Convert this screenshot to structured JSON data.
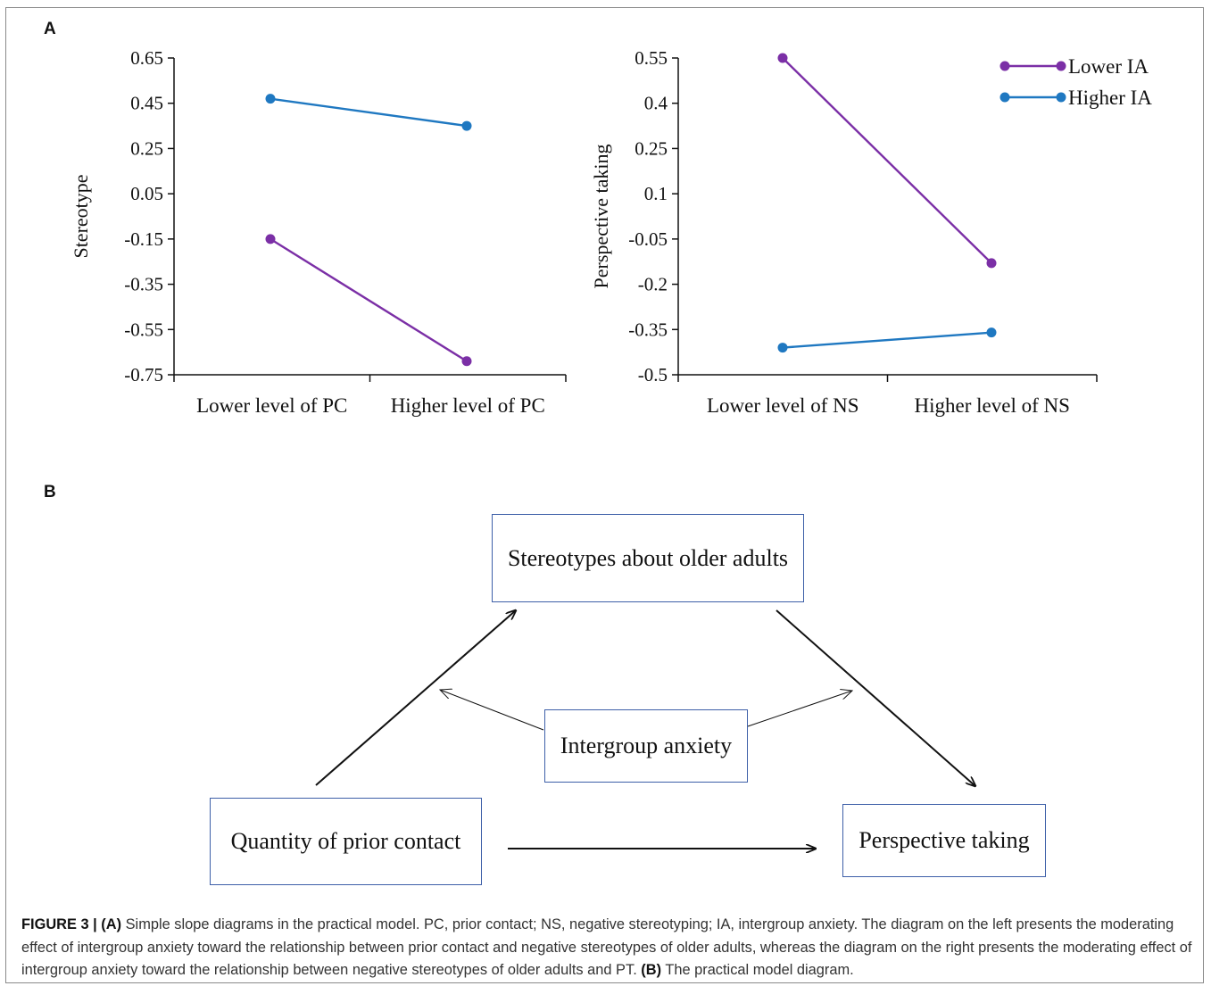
{
  "panel_a_label": "A",
  "panel_b_label": "B",
  "chart_data": [
    {
      "type": "line",
      "xlabel": "",
      "ylabel": "Stereotype",
      "categories": [
        "Lower level of PC",
        "Higher level of PC"
      ],
      "y_ticks": [
        "0.65",
        "0.45",
        "0.25",
        "0.05",
        "-0.15",
        "-0.35",
        "-0.55",
        "-0.75"
      ],
      "ylim": [
        -0.75,
        0.65
      ],
      "series": [
        {
          "name": "Lower IA",
          "values": [
            -0.15,
            -0.69
          ],
          "color": "#7b2fa6"
        },
        {
          "name": "Higher IA",
          "values": [
            0.47,
            0.35
          ],
          "color": "#1f78c1"
        }
      ],
      "legend": "none",
      "grid": false
    },
    {
      "type": "line",
      "xlabel": "",
      "ylabel": "Perspective taking",
      "categories": [
        "Lower level of NS",
        "Higher level of NS"
      ],
      "y_ticks": [
        "0.55",
        "0.4",
        "0.25",
        "0.1",
        "-0.05",
        "-0.2",
        "-0.35",
        "-0.5"
      ],
      "ylim": [
        -0.5,
        0.55
      ],
      "series": [
        {
          "name": "Lower IA",
          "values": [
            0.55,
            -0.13
          ],
          "color": "#7b2fa6"
        },
        {
          "name": "Higher IA",
          "values": [
            -0.41,
            -0.36
          ],
          "color": "#1f78c1"
        }
      ],
      "legend": "top-right",
      "grid": false
    }
  ],
  "diagram": {
    "stereotypes": "Stereotypes about older adults",
    "anxiety": "Intergroup anxiety",
    "contact": "Quantity of prior contact",
    "perspective": "Perspective taking"
  },
  "caption": {
    "figure_label": "FIGURE 3 | ",
    "a_label": "(A)",
    "text_1": " Simple slope diagrams in the practical model. PC, prior contact; NS, negative stereotyping; IA, intergroup anxiety. The diagram on the left presents the moderating effect of intergroup anxiety toward the relationship between prior contact and negative stereotypes of older adults, whereas the diagram on the right presents the moderating effect of intergroup anxiety toward the relationship between negative stereotypes of older adults and PT. ",
    "b_label": "(B)",
    "text_2": " The practical model diagram."
  }
}
